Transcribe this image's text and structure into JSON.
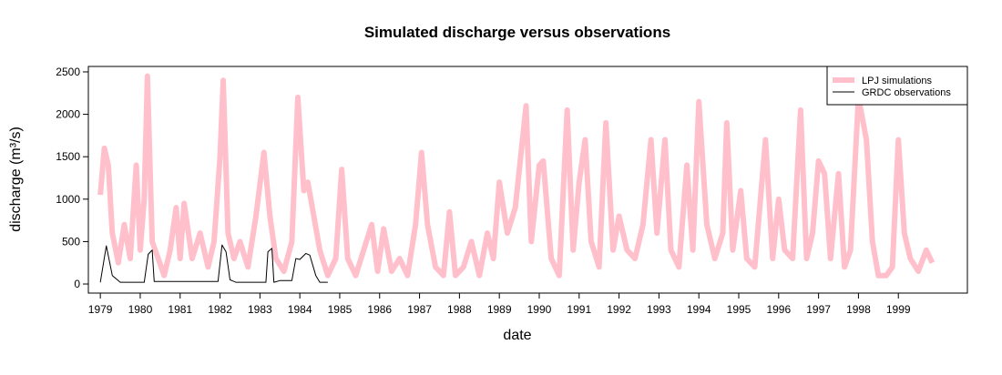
{
  "chart_data": {
    "type": "line",
    "title": "Simulated discharge versus observations",
    "xlabel": "date",
    "ylabel": "discharge (m³/s)",
    "xlim": [
      1978.7,
      2000.73
    ],
    "ylim": [
      -107,
      2564
    ],
    "xticks": [
      1979,
      1980,
      1981,
      1982,
      1983,
      1984,
      1985,
      1986,
      1987,
      1988,
      1989,
      1990,
      1991,
      1992,
      1993,
      1994,
      1995,
      1996,
      1997,
      1998,
      1999
    ],
    "yticks": [
      0,
      500,
      1000,
      1500,
      2000,
      2500
    ],
    "legend": "top-right",
    "series": [
      {
        "name": "LPJ simulations",
        "color": "#ffc0cb",
        "width": 6,
        "x": [
          1979.0,
          1979.1,
          1979.2,
          1979.3,
          1979.45,
          1979.6,
          1979.75,
          1979.9,
          1980.0,
          1980.1,
          1980.18,
          1980.3,
          1980.45,
          1980.6,
          1980.75,
          1980.9,
          1981.0,
          1981.1,
          1981.3,
          1981.5,
          1981.7,
          1981.85,
          1982.0,
          1982.08,
          1982.2,
          1982.35,
          1982.5,
          1982.7,
          1982.9,
          1983.1,
          1983.25,
          1983.4,
          1983.6,
          1983.8,
          1983.95,
          1984.1,
          1984.2,
          1984.35,
          1984.5,
          1984.7,
          1984.9,
          1985.05,
          1985.2,
          1985.4,
          1985.6,
          1985.8,
          1985.95,
          1986.1,
          1986.3,
          1986.5,
          1986.7,
          1986.9,
          1987.05,
          1987.2,
          1987.4,
          1987.6,
          1987.75,
          1987.9,
          1988.1,
          1988.3,
          1988.5,
          1988.7,
          1988.85,
          1989.0,
          1989.2,
          1989.4,
          1989.67,
          1989.8,
          1990.0,
          1990.1,
          1990.3,
          1990.5,
          1990.7,
          1990.85,
          1991.0,
          1991.15,
          1991.3,
          1991.5,
          1991.67,
          1991.85,
          1992.0,
          1992.2,
          1992.4,
          1992.6,
          1992.8,
          1992.95,
          1993.15,
          1993.3,
          1993.5,
          1993.7,
          1993.85,
          1994.0,
          1994.2,
          1994.4,
          1994.6,
          1994.7,
          1994.85,
          1995.05,
          1995.2,
          1995.4,
          1995.67,
          1995.85,
          1996.0,
          1996.15,
          1996.35,
          1996.55,
          1996.7,
          1996.85,
          1997.0,
          1997.15,
          1997.3,
          1997.5,
          1997.65,
          1997.8,
          1998.0,
          1998.2,
          1998.35,
          1998.5,
          1998.7,
          1998.85,
          1999.0,
          1999.15,
          1999.3,
          1999.5,
          1999.7,
          1999.85
        ],
        "values": [
          1050,
          1600,
          1400,
          600,
          250,
          700,
          300,
          1400,
          400,
          1000,
          2450,
          500,
          300,
          100,
          400,
          900,
          300,
          950,
          300,
          600,
          200,
          500,
          1500,
          2400,
          600,
          300,
          500,
          200,
          800,
          1550,
          800,
          300,
          150,
          500,
          2200,
          1100,
          1200,
          800,
          400,
          100,
          300,
          1350,
          300,
          100,
          400,
          700,
          150,
          650,
          150,
          300,
          100,
          700,
          1550,
          700,
          200,
          100,
          850,
          100,
          200,
          500,
          100,
          600,
          300,
          1200,
          600,
          900,
          2100,
          500,
          1400,
          1450,
          300,
          100,
          2050,
          400,
          1200,
          1700,
          500,
          200,
          1900,
          400,
          800,
          400,
          300,
          700,
          1700,
          600,
          1700,
          400,
          200,
          1400,
          400,
          2150,
          700,
          300,
          600,
          1900,
          400,
          1100,
          300,
          200,
          1700,
          300,
          1000,
          400,
          300,
          2050,
          300,
          600,
          1450,
          1300,
          300,
          1300,
          200,
          400,
          2200,
          1700,
          500,
          100,
          100,
          200,
          1700,
          600,
          300,
          150,
          400,
          250
        ]
      },
      {
        "name": "GRDC observations",
        "color": "#000000",
        "width": 1,
        "x": [
          1979.0,
          1979.15,
          1979.3,
          1979.5,
          1980.1,
          1980.2,
          1980.3,
          1980.35,
          1981.95,
          1982.05,
          1982.15,
          1982.25,
          1982.4,
          1983.15,
          1983.2,
          1983.3,
          1983.35,
          1983.5,
          1983.8,
          1983.9,
          1984.0,
          1984.15,
          1984.25,
          1984.4,
          1984.5,
          1984.7
        ],
        "values": [
          20,
          450,
          100,
          20,
          20,
          350,
          400,
          30,
          30,
          460,
          380,
          50,
          20,
          20,
          380,
          420,
          20,
          40,
          40,
          300,
          290,
          360,
          340,
          100,
          20,
          20
        ]
      }
    ]
  }
}
